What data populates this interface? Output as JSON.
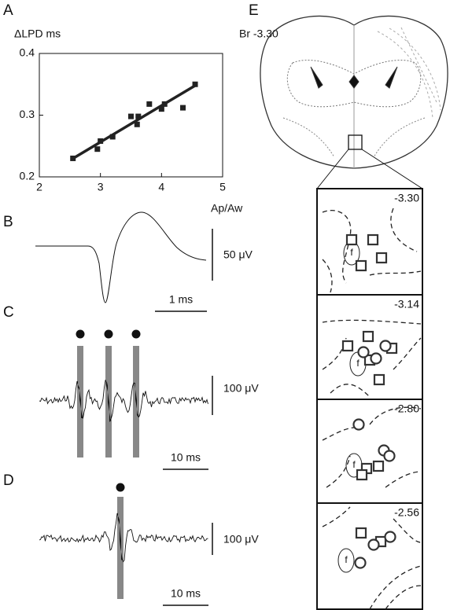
{
  "chart_data": {
    "type": "scatter",
    "panel": "A",
    "y_label": "ΔLPD ms",
    "x_label": "Ap/Aw",
    "x": [
      2.55,
      2.95,
      3.0,
      3.2,
      3.5,
      3.6,
      3.62,
      3.8,
      4.0,
      4.05,
      4.35,
      4.55
    ],
    "values": [
      0.23,
      0.245,
      0.258,
      0.265,
      0.298,
      0.285,
      0.298,
      0.318,
      0.31,
      0.318,
      0.312,
      0.35
    ],
    "fit": {
      "x": [
        2.52,
        4.55
      ],
      "values": [
        0.228,
        0.348
      ]
    },
    "color": "#222222",
    "xlim": [
      2,
      5
    ],
    "ylim": [
      0.2,
      0.4
    ],
    "xticks": [
      2,
      3,
      4,
      5
    ],
    "yticks": [
      0.2,
      0.3,
      0.4
    ]
  },
  "panels": {
    "B": {
      "label": "B",
      "amp_scale": "50 μV",
      "time_scale": "1 ms"
    },
    "C": {
      "label": "C",
      "amp_scale": "100 μV",
      "time_scale": "10 ms"
    },
    "D": {
      "label": "D",
      "amp_scale": "100 μV",
      "time_scale": "10 ms"
    },
    "E": {
      "label": "E",
      "section": "Br -3.30",
      "structure": "f",
      "insets": [
        "-3.30",
        "-3.14",
        "-2.80",
        "-2.56"
      ]
    }
  }
}
